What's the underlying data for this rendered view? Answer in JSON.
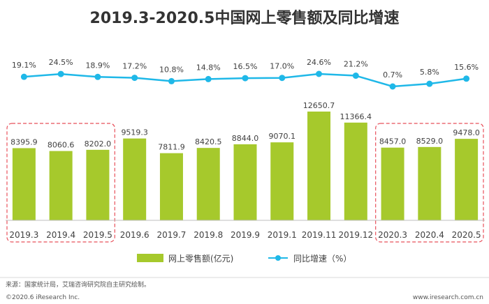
{
  "chart_data": {
    "type": "bar",
    "title": "2019.3-2020.5中国网上零售额及同比增速",
    "categories": [
      "2019.3",
      "2019.4",
      "2019.5",
      "2019.6",
      "2019.7",
      "2019.8",
      "2019.9",
      "2019.1",
      "2019.11",
      "2019.12",
      "2020.3",
      "2020.4",
      "2020.5"
    ],
    "series": [
      {
        "name": "网上零售额(亿元)",
        "type": "bar",
        "color": "#a6c92c",
        "values": [
          8395.9,
          8060.6,
          8202.0,
          9519.3,
          7811.9,
          8420.5,
          8844.0,
          9070.1,
          12650.7,
          11366.4,
          8457.0,
          8529.0,
          9478.0
        ],
        "labels": [
          "8395.9",
          "8060.6",
          "8202.0",
          "9519.3",
          "7811.9",
          "8420.5",
          "8844.0",
          "9070.1",
          "12650.7",
          "11366.4",
          "8457.0",
          "8529.0",
          "9478.0"
        ]
      },
      {
        "name": "同比增速（%）",
        "type": "line",
        "color": "#1fb8e8",
        "values": [
          19.1,
          24.5,
          18.9,
          17.2,
          10.8,
          14.8,
          16.5,
          17.0,
          24.6,
          21.2,
          0.7,
          5.8,
          15.6
        ],
        "labels": [
          "19.1%",
          "24.5%",
          "18.9%",
          "17.2%",
          "10.8%",
          "14.8%",
          "16.5%",
          "17.0%",
          "24.6%",
          "21.2%",
          "0.7%",
          "5.8%",
          "15.6%"
        ]
      }
    ],
    "highlight_groups": [
      {
        "from": "2019.3",
        "to": "2019.5",
        "style": "dashed",
        "color": "#e8505b"
      },
      {
        "from": "2020.3",
        "to": "2020.5",
        "style": "dashed",
        "color": "#e8505b"
      }
    ],
    "legend": {
      "placement": "bottom"
    }
  },
  "footer": {
    "source": "来源：国家统计局，艾瑞咨询研究院自主研究绘制。",
    "copyright": "©2020.6 iResearch Inc.",
    "website": "www.iresearch.com.cn"
  }
}
